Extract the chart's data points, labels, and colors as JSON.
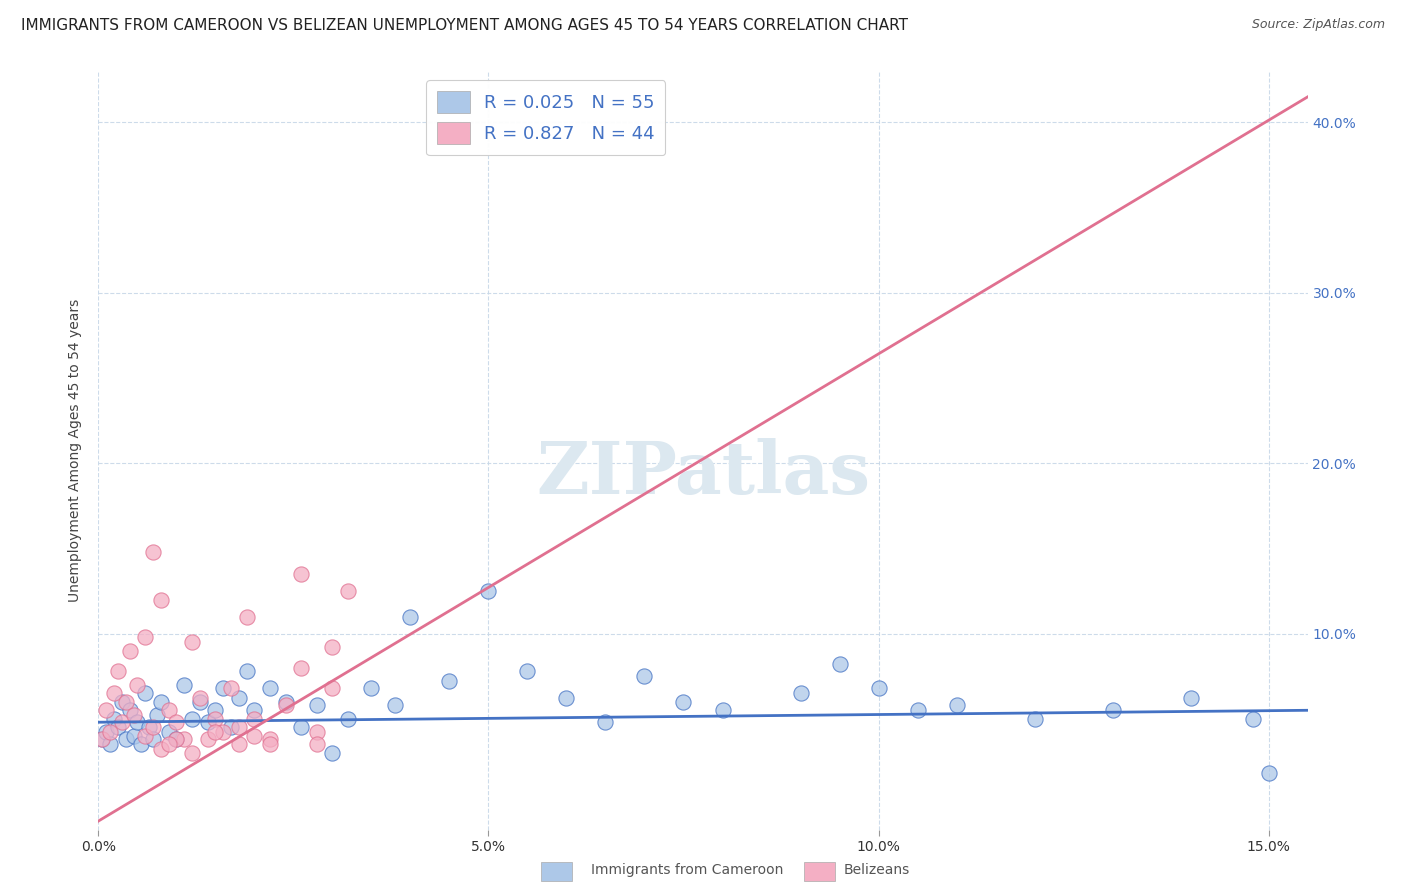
{
  "title": "IMMIGRANTS FROM CAMEROON VS BELIZEAN UNEMPLOYMENT AMONG AGES 45 TO 54 YEARS CORRELATION CHART",
  "source": "Source: ZipAtlas.com",
  "ylabel": "Unemployment Among Ages 45 to 54 years",
  "legend_label1": "Immigrants from Cameroon",
  "legend_label2": "Belizeans",
  "R1": 0.025,
  "N1": 55,
  "R2": 0.827,
  "N2": 44,
  "color1": "#adc8e8",
  "color2": "#f4afc4",
  "line_color1": "#4472c4",
  "line_color2": "#e07090",
  "watermark": "ZIPatlas",
  "watermark_color": "#dce8f0",
  "x_min": 0.0,
  "x_max": 0.155,
  "y_min": -0.015,
  "y_max": 0.43,
  "blue_scatter_x": [
    0.0005,
    0.001,
    0.0015,
    0.002,
    0.0025,
    0.003,
    0.0035,
    0.004,
    0.0045,
    0.005,
    0.0055,
    0.006,
    0.0065,
    0.007,
    0.0075,
    0.008,
    0.009,
    0.01,
    0.011,
    0.012,
    0.013,
    0.014,
    0.015,
    0.016,
    0.017,
    0.018,
    0.019,
    0.02,
    0.022,
    0.024,
    0.026,
    0.028,
    0.03,
    0.032,
    0.035,
    0.038,
    0.04,
    0.045,
    0.05,
    0.055,
    0.06,
    0.065,
    0.07,
    0.075,
    0.08,
    0.09,
    0.095,
    0.1,
    0.105,
    0.11,
    0.12,
    0.13,
    0.14,
    0.148,
    0.15
  ],
  "blue_scatter_y": [
    0.038,
    0.042,
    0.035,
    0.05,
    0.045,
    0.06,
    0.038,
    0.055,
    0.04,
    0.048,
    0.035,
    0.065,
    0.045,
    0.038,
    0.052,
    0.06,
    0.042,
    0.038,
    0.07,
    0.05,
    0.06,
    0.048,
    0.055,
    0.068,
    0.045,
    0.062,
    0.078,
    0.055,
    0.068,
    0.06,
    0.045,
    0.058,
    0.03,
    0.05,
    0.068,
    0.058,
    0.11,
    0.072,
    0.125,
    0.078,
    0.062,
    0.048,
    0.075,
    0.06,
    0.055,
    0.065,
    0.082,
    0.068,
    0.055,
    0.058,
    0.05,
    0.055,
    0.062,
    0.05,
    0.018
  ],
  "pink_scatter_x": [
    0.0005,
    0.001,
    0.0015,
    0.002,
    0.0025,
    0.003,
    0.0035,
    0.004,
    0.0045,
    0.005,
    0.006,
    0.007,
    0.008,
    0.009,
    0.01,
    0.011,
    0.012,
    0.013,
    0.014,
    0.015,
    0.016,
    0.017,
    0.018,
    0.019,
    0.02,
    0.022,
    0.024,
    0.026,
    0.028,
    0.03,
    0.018,
    0.02,
    0.022,
    0.026,
    0.028,
    0.03,
    0.032,
    0.01,
    0.012,
    0.015,
    0.008,
    0.009,
    0.007,
    0.006
  ],
  "pink_scatter_y": [
    0.038,
    0.055,
    0.042,
    0.065,
    0.078,
    0.048,
    0.06,
    0.09,
    0.052,
    0.07,
    0.04,
    0.045,
    0.12,
    0.055,
    0.048,
    0.038,
    0.095,
    0.062,
    0.038,
    0.05,
    0.042,
    0.068,
    0.045,
    0.11,
    0.04,
    0.038,
    0.058,
    0.135,
    0.042,
    0.068,
    0.035,
    0.05,
    0.035,
    0.08,
    0.035,
    0.092,
    0.125,
    0.038,
    0.03,
    0.042,
    0.032,
    0.035,
    0.148,
    0.098
  ],
  "blue_line_x": [
    0.0,
    0.155
  ],
  "blue_line_y": [
    0.048,
    0.055
  ],
  "pink_line_x": [
    0.0,
    0.155
  ],
  "pink_line_y": [
    -0.01,
    0.415
  ],
  "xticks": [
    0.0,
    0.05,
    0.1,
    0.15
  ],
  "xtick_labels": [
    "0.0%",
    "5.0%",
    "10.0%",
    "15.0%"
  ],
  "yticks_right": [
    0.1,
    0.2,
    0.3,
    0.4
  ],
  "ytick_labels_right": [
    "10.0%",
    "20.0%",
    "30.0%",
    "40.0%"
  ],
  "background_color": "#ffffff",
  "grid_color": "#c8d8e8",
  "title_fontsize": 11,
  "source_fontsize": 9
}
